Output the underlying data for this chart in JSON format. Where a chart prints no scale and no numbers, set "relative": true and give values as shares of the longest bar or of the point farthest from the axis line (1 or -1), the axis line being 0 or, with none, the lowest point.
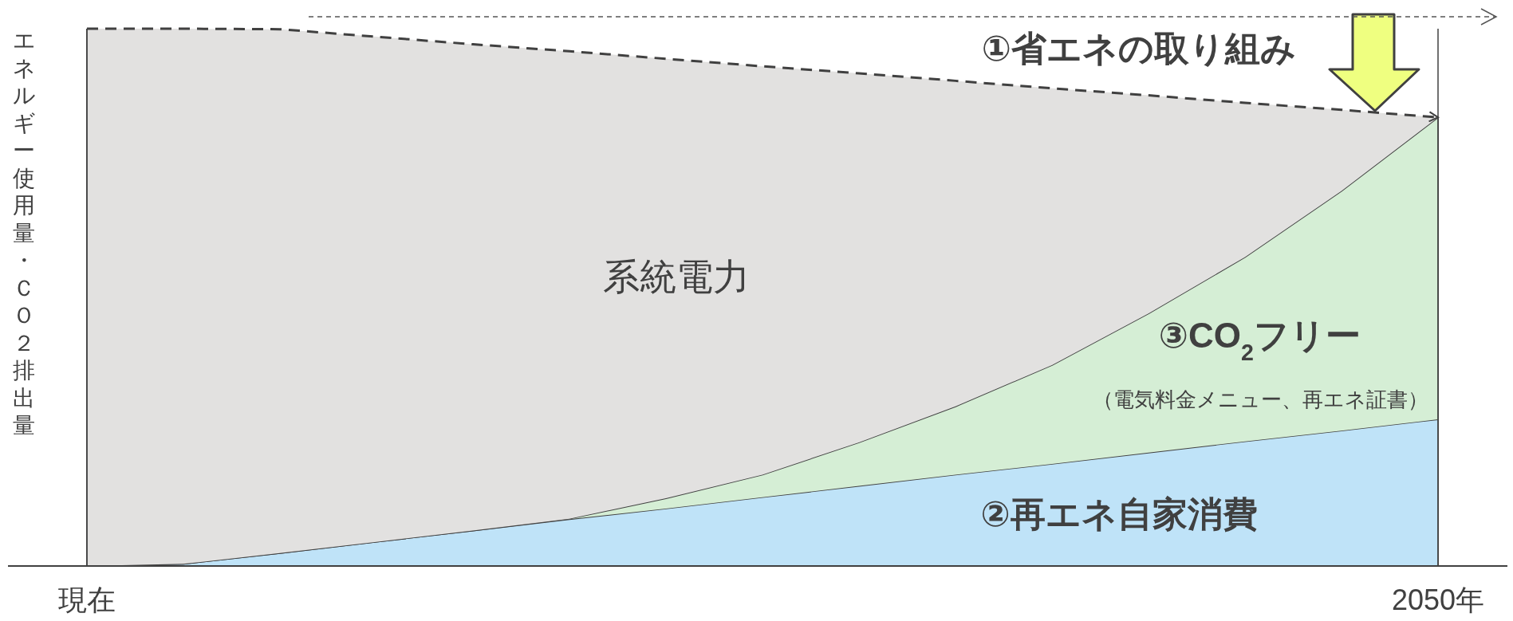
{
  "chart_data": {
    "type": "area",
    "relative": true,
    "stacked": true,
    "grid": "x",
    "ylabel": "エネルギー使用量・ＣＯ２排出量",
    "categories": [
      "現在",
      null,
      null,
      null,
      null,
      null,
      null,
      null,
      null,
      null,
      null,
      null,
      null,
      null,
      "2050年"
    ],
    "series": [
      {
        "name": "②再エネ自家消費",
        "color": "#bfe3f8",
        "values": [
          0,
          0.004,
          0.024,
          0.045,
          0.066,
          0.087,
          0.107,
          0.128,
          0.149,
          0.17,
          0.19,
          0.211,
          0.232,
          0.252,
          0.273
        ]
      },
      {
        "name": "③CO$_{2}$フリー",
        "color": "#d5eed5",
        "values": [
          0,
          0,
          0,
          0,
          0,
          0.001,
          0.019,
          0.042,
          0.081,
          0.127,
          0.184,
          0.259,
          0.343,
          0.446,
          0.562
        ]
      },
      {
        "name": "系統電力",
        "color": "#e2e1e0",
        "line_style": "dashed",
        "values": [
          1.0,
          0.996,
          0.975,
          0.94,
          0.905,
          0.87,
          0.818,
          0.76,
          0.687,
          0.606,
          0.515,
          0.406,
          0.287,
          0.151,
          0
        ]
      }
    ],
    "annotations": [
      "（電気料金メニュー、再エネ証書）",
      "①省エネの取り組み"
    ]
  }
}
